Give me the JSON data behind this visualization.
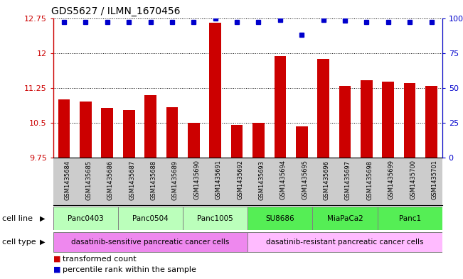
{
  "title": "GDS5627 / ILMN_1670456",
  "samples": [
    "GSM1435684",
    "GSM1435685",
    "GSM1435686",
    "GSM1435687",
    "GSM1435688",
    "GSM1435689",
    "GSM1435690",
    "GSM1435691",
    "GSM1435692",
    "GSM1435693",
    "GSM1435694",
    "GSM1435695",
    "GSM1435696",
    "GSM1435697",
    "GSM1435698",
    "GSM1435699",
    "GSM1435700",
    "GSM1435701"
  ],
  "bar_values": [
    11.0,
    10.95,
    10.82,
    10.78,
    11.1,
    10.83,
    10.5,
    12.65,
    10.46,
    10.5,
    11.93,
    10.43,
    11.88,
    11.3,
    11.42,
    11.38,
    11.35,
    11.3
  ],
  "percentile_values": [
    97,
    97,
    97,
    97,
    97,
    97,
    97,
    100,
    97,
    97,
    99,
    88,
    99,
    98,
    97,
    97,
    97,
    97
  ],
  "bar_color": "#cc0000",
  "percentile_color": "#0000cc",
  "ylim_left": [
    9.75,
    12.75
  ],
  "ylim_right": [
    0,
    100
  ],
  "yticks_left": [
    9.75,
    10.5,
    11.25,
    12.0,
    12.75
  ],
  "ytick_labels_left": [
    "9.75",
    "10.5",
    "11.25",
    "12",
    "12.75"
  ],
  "yticks_right": [
    0,
    25,
    50,
    75,
    100
  ],
  "ytick_labels_right": [
    "0",
    "25",
    "50",
    "75",
    "100%"
  ],
  "cell_lines": [
    {
      "label": "Panc0403",
      "start": 0,
      "end": 2,
      "color": "#bbffbb"
    },
    {
      "label": "Panc0504",
      "start": 3,
      "end": 5,
      "color": "#bbffbb"
    },
    {
      "label": "Panc1005",
      "start": 6,
      "end": 8,
      "color": "#bbffbb"
    },
    {
      "label": "SU8686",
      "start": 9,
      "end": 11,
      "color": "#55ee55"
    },
    {
      "label": "MiaPaCa2",
      "start": 12,
      "end": 14,
      "color": "#55ee55"
    },
    {
      "label": "Panc1",
      "start": 15,
      "end": 17,
      "color": "#55ee55"
    }
  ],
  "cell_types": [
    {
      "label": "dasatinib-sensitive pancreatic cancer cells",
      "start": 0,
      "end": 8,
      "color": "#ee88ee"
    },
    {
      "label": "dasatinib-resistant pancreatic cancer cells",
      "start": 9,
      "end": 17,
      "color": "#ffbbff"
    }
  ],
  "legend_items": [
    {
      "color": "#cc0000",
      "label": "transformed count"
    },
    {
      "color": "#0000cc",
      "label": "percentile rank within the sample"
    }
  ],
  "cell_line_label": "cell line",
  "cell_type_label": "cell type",
  "xtick_bg": "#cccccc",
  "bar_width": 0.55
}
